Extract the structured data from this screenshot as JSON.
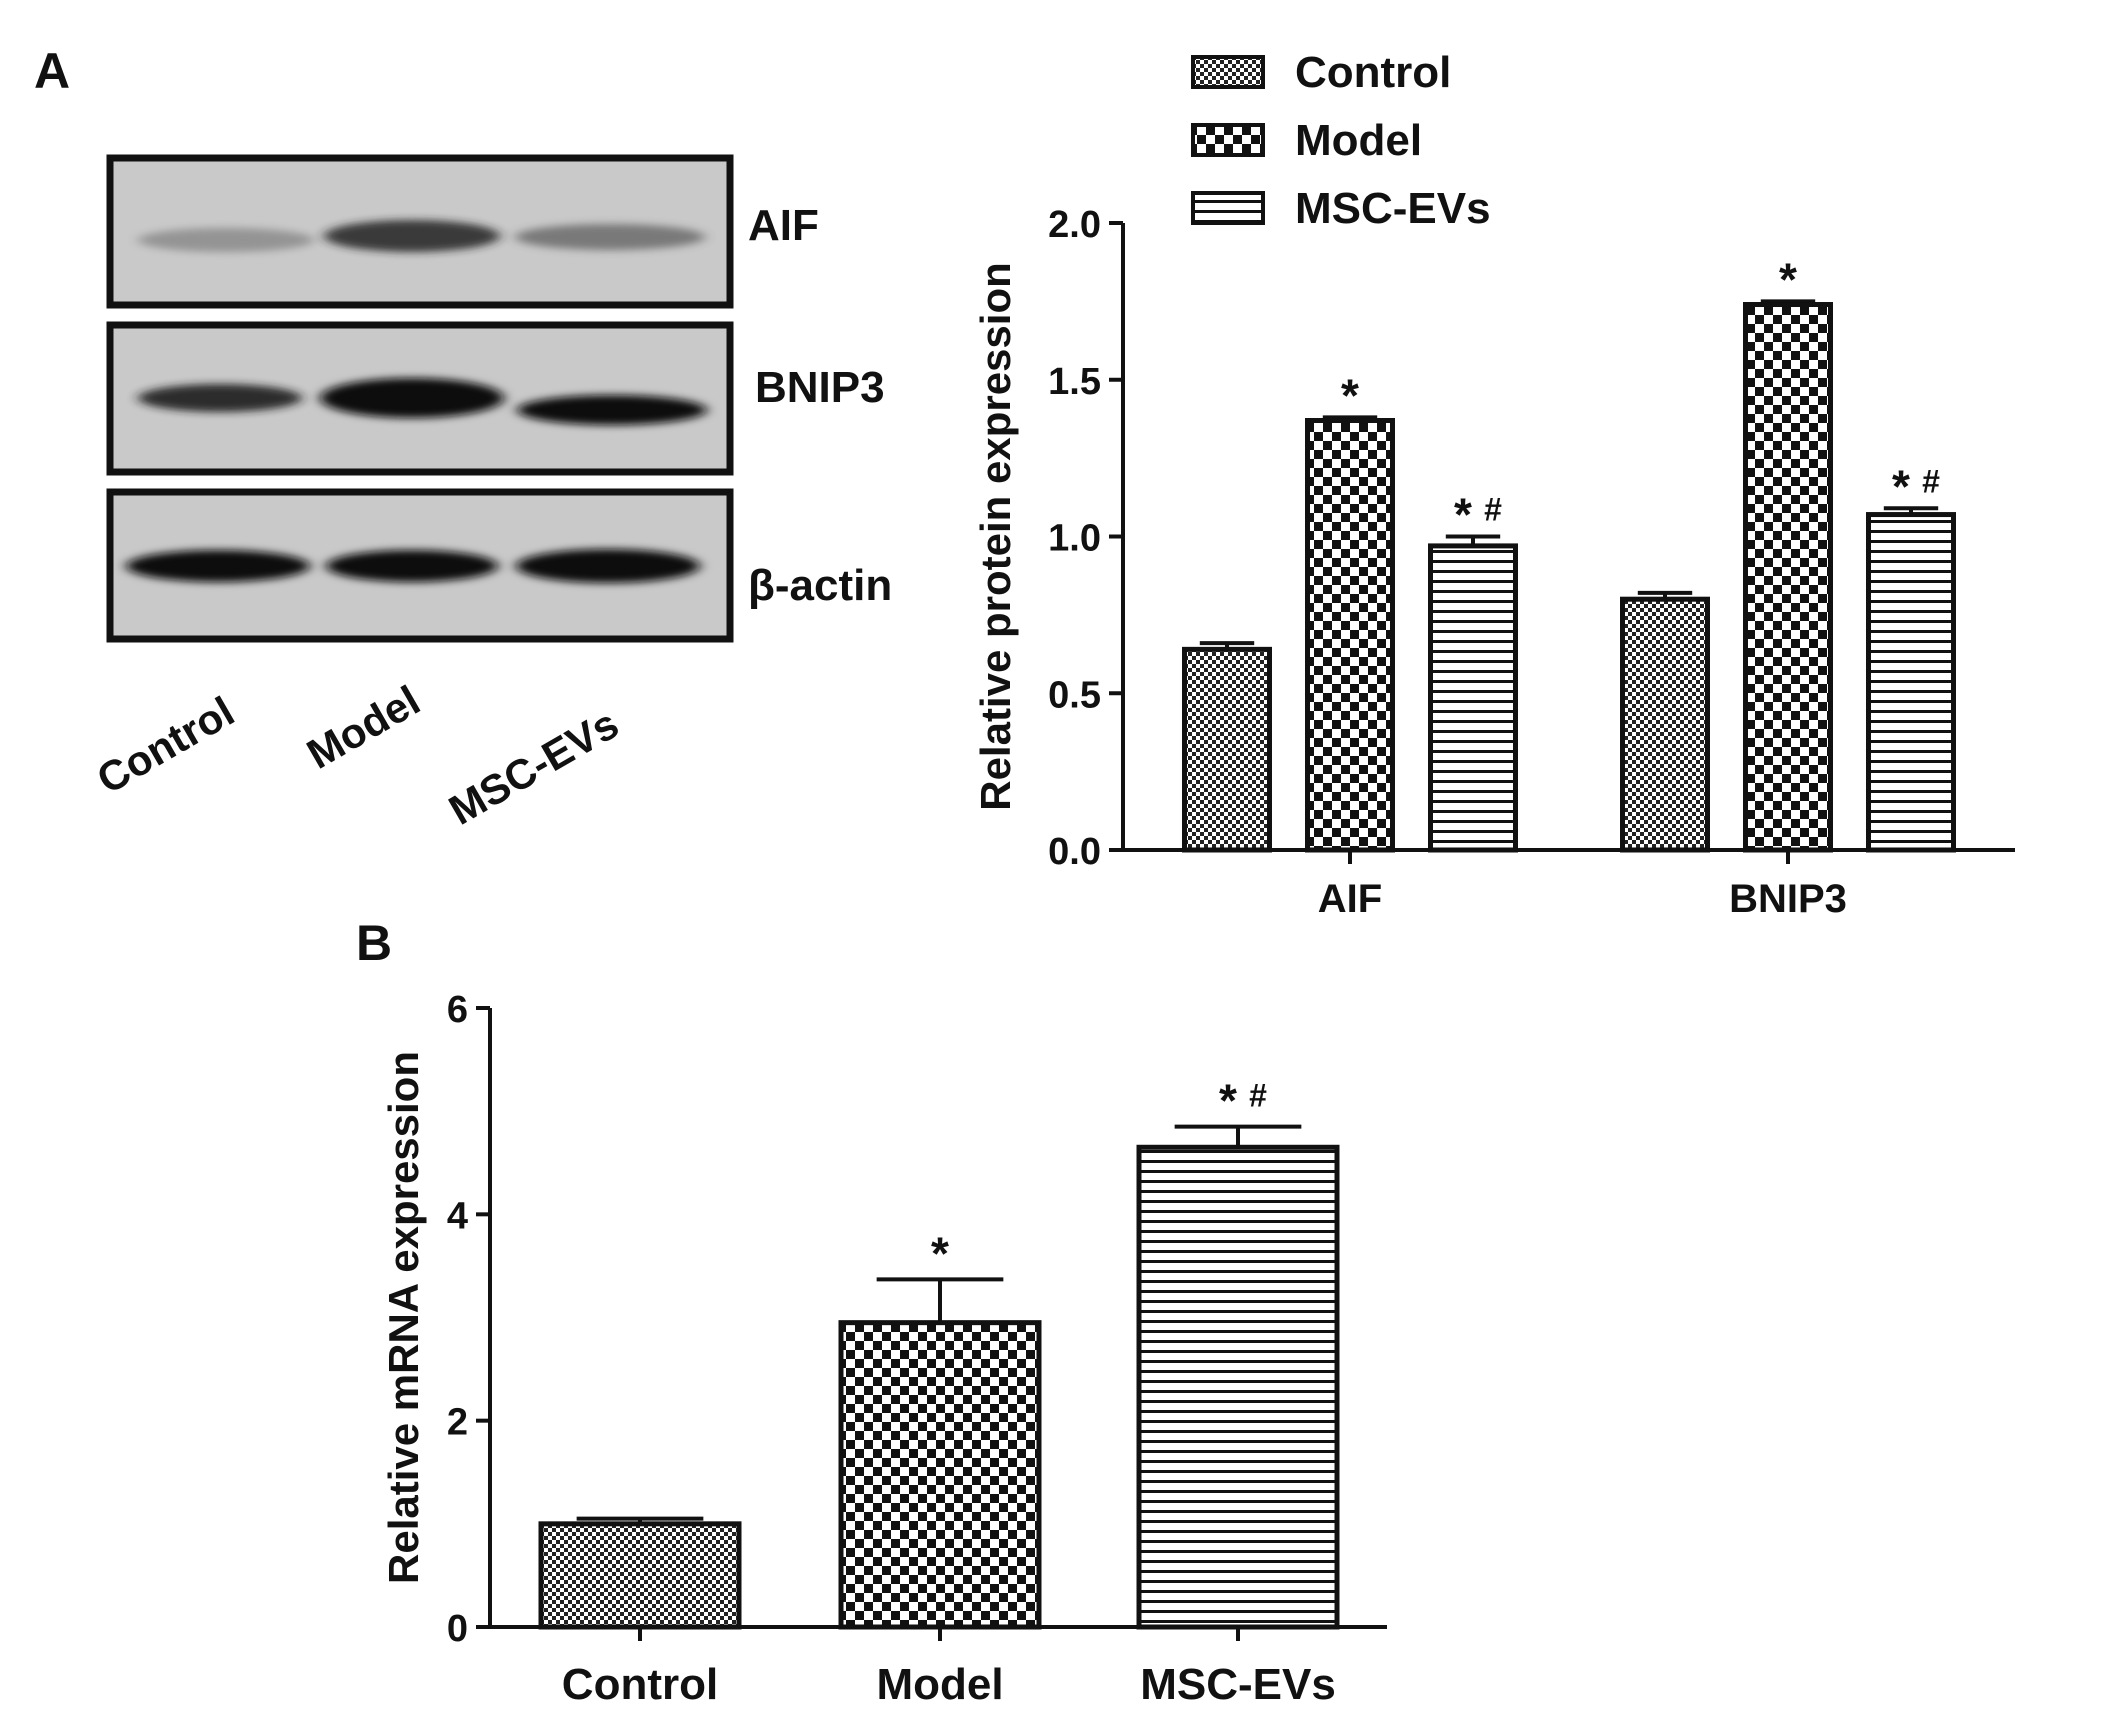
{
  "panel_labels": {
    "a": "A",
    "b": "B"
  },
  "colors": {
    "ink": "#111111",
    "bar_fill": "#ffffff",
    "blot_bg": "#c9c9c9",
    "band": "#2a2a2a"
  },
  "western_blot": {
    "rows": [
      "AIF",
      "BNIP3",
      "β-actin"
    ],
    "lanes": [
      "Control",
      "Model",
      "MSC-EVs"
    ]
  },
  "chart_data": [
    {
      "type": "bar",
      "panel": "A",
      "categories": [
        "AIF",
        "BNIP3"
      ],
      "series": [
        {
          "name": "Control",
          "pattern": "fine-checker",
          "values": [
            0.64,
            0.8
          ],
          "errors": [
            0.02,
            0.02
          ],
          "annotations": [
            "",
            ""
          ]
        },
        {
          "name": "Model",
          "pattern": "coarse-checker",
          "values": [
            1.37,
            1.74
          ],
          "errors": [
            0.01,
            0.01
          ],
          "annotations": [
            "*",
            "*"
          ]
        },
        {
          "name": "MSC-EVs",
          "pattern": "horizontal-stripes",
          "values": [
            0.97,
            1.07
          ],
          "errors": [
            0.03,
            0.02
          ],
          "annotations": [
            "*#",
            "*#"
          ]
        }
      ],
      "ylabel": "Relative protein expression",
      "ylim": [
        0,
        2.0
      ],
      "yticks": [
        "0.0",
        "0.5",
        "1.0",
        "1.5",
        "2.0"
      ],
      "legend": "top",
      "grid": false
    },
    {
      "type": "bar",
      "panel": "B",
      "categories": [
        "Control",
        "Model",
        "MSC-EVs"
      ],
      "patterns": [
        "fine-checker",
        "coarse-checker",
        "horizontal-stripes"
      ],
      "values": [
        1.0,
        2.95,
        4.65
      ],
      "errors": [
        0.05,
        0.42,
        0.2
      ],
      "annotations": [
        "",
        "*",
        "*#"
      ],
      "ylabel": "Relative mRNA expression",
      "ylim": [
        0,
        6
      ],
      "yticks": [
        "0",
        "2",
        "4",
        "6"
      ],
      "grid": false
    }
  ]
}
